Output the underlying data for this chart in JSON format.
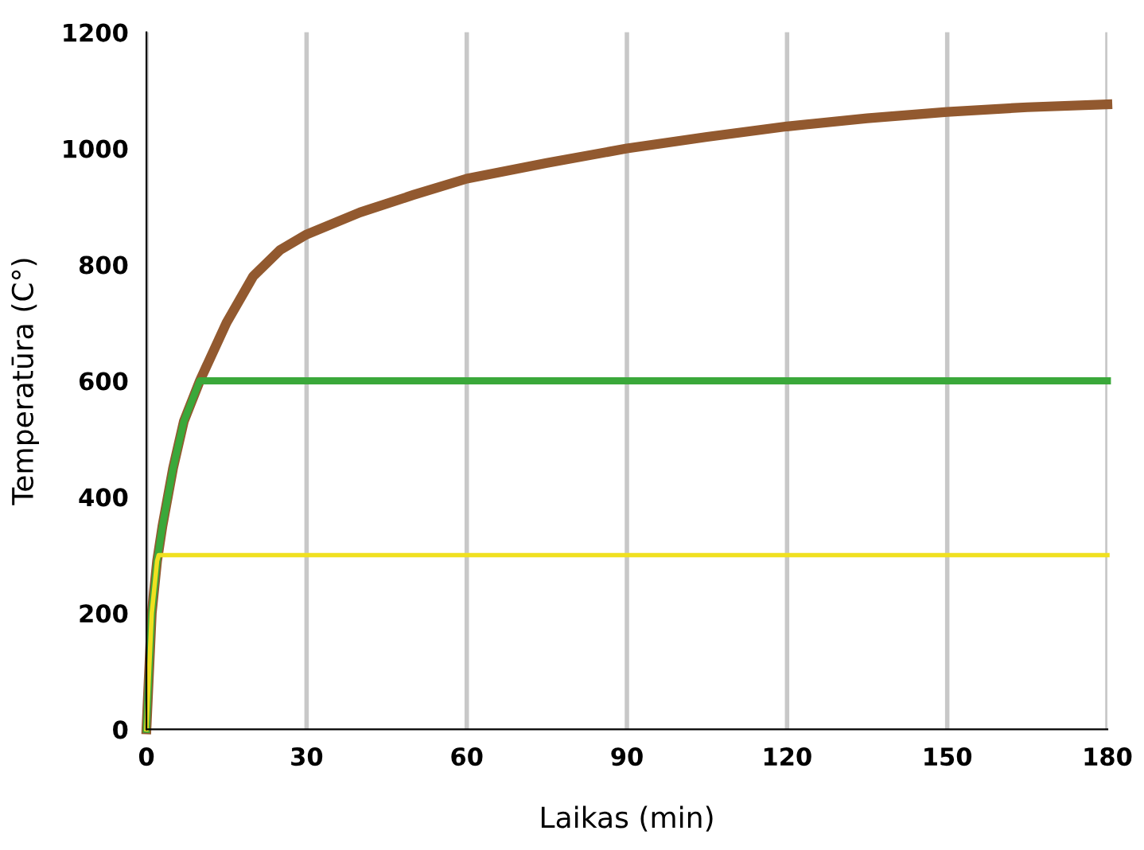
{
  "chart_data": {
    "type": "line",
    "xlabel": "Laikas (min)",
    "ylabel": "Temperatūra (C°)",
    "xlim": [
      0,
      180
    ],
    "ylim": [
      0,
      1200
    ],
    "xticks": [
      0,
      30,
      60,
      90,
      120,
      150,
      180
    ],
    "yticks": [
      0,
      200,
      400,
      600,
      800,
      1000,
      1200
    ],
    "grid": "x",
    "marker": "none",
    "line_style": "solid",
    "series": [
      {
        "color": "#92592f",
        "x": [
          0,
          1,
          2,
          3,
          5,
          7,
          10,
          15,
          20,
          25,
          30,
          40,
          50,
          60,
          75,
          90,
          105,
          120,
          135,
          150,
          165,
          180
        ],
        "values": [
          0,
          200,
          290,
          350,
          450,
          530,
          600,
          700,
          780,
          825,
          852,
          890,
          920,
          948,
          975,
          1000,
          1020,
          1038,
          1052,
          1063,
          1071,
          1076
        ]
      },
      {
        "color": "#3aa83a",
        "x": [
          0,
          1,
          2,
          3,
          5,
          7,
          10,
          180
        ],
        "values": [
          0,
          200,
          290,
          350,
          450,
          530,
          600,
          600
        ]
      },
      {
        "color": "#f0e020",
        "x": [
          0,
          1,
          2,
          2.3,
          180
        ],
        "values": [
          0,
          200,
          290,
          300,
          300
        ]
      }
    ]
  }
}
